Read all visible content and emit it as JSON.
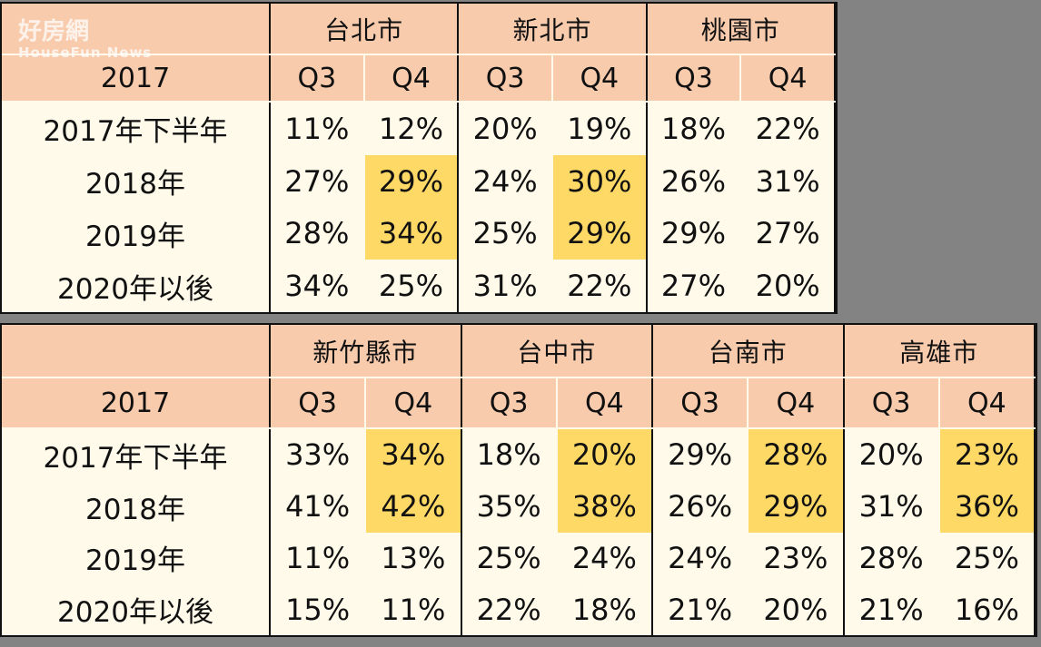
{
  "watermark": {
    "name": "好房網",
    "sub": "HouseFun News"
  },
  "table1": {
    "year": "2017",
    "cities": [
      "台北市",
      "新北市",
      "桃園市"
    ],
    "quarters": [
      "Q3",
      "Q4",
      "Q3",
      "Q4",
      "Q3",
      "Q4"
    ],
    "rows": [
      {
        "label": "2017年下半年",
        "values": [
          "11%",
          "12%",
          "20%",
          "19%",
          "18%",
          "22%"
        ]
      },
      {
        "label": "2018年",
        "values": [
          "27%",
          "29%",
          "24%",
          "30%",
          "26%",
          "31%"
        ]
      },
      {
        "label": "2019年",
        "values": [
          "28%",
          "34%",
          "25%",
          "29%",
          "29%",
          "27%"
        ]
      },
      {
        "label": "2020年以後",
        "values": [
          "34%",
          "25%",
          "31%",
          "22%",
          "27%",
          "20%"
        ]
      }
    ],
    "highlight_color": "#ffd966"
  },
  "table2": {
    "year": "2017",
    "cities": [
      "新竹縣市",
      "台中市",
      "台南市",
      "高雄市"
    ],
    "quarters": [
      "Q3",
      "Q4",
      "Q3",
      "Q4",
      "Q3",
      "Q4",
      "Q3",
      "Q4"
    ],
    "rows": [
      {
        "label": "2017年下半年",
        "values": [
          "33%",
          "34%",
          "18%",
          "20%",
          "29%",
          "28%",
          "20%",
          "23%"
        ]
      },
      {
        "label": "2018年",
        "values": [
          "41%",
          "42%",
          "35%",
          "38%",
          "26%",
          "29%",
          "31%",
          "36%"
        ]
      },
      {
        "label": "2019年",
        "values": [
          "11%",
          "13%",
          "25%",
          "24%",
          "24%",
          "23%",
          "28%",
          "25%"
        ]
      },
      {
        "label": "2020年以後",
        "values": [
          "15%",
          "11%",
          "22%",
          "18%",
          "21%",
          "20%",
          "21%",
          "16%"
        ]
      }
    ],
    "highlight_color": "#ffd966"
  },
  "colors": {
    "header": "#f8cbad",
    "body": "#fffaea",
    "highlight": "#ffd966",
    "background": "#838383"
  }
}
